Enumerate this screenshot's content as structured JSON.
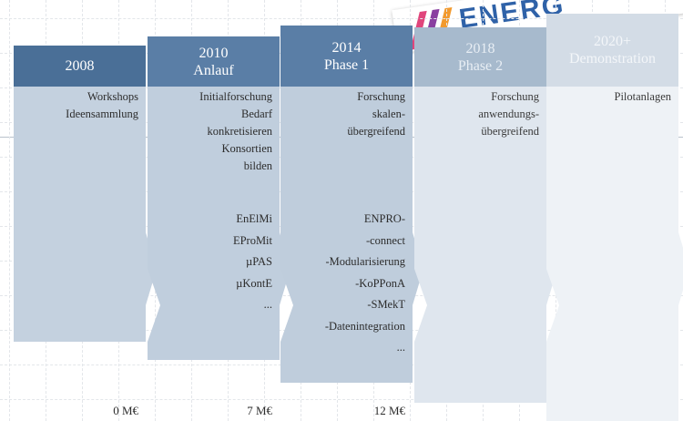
{
  "logo": "ENERG",
  "columns": [
    {
      "header": [
        "2008"
      ],
      "lines": [
        "Workshops",
        "Ideensammlung"
      ],
      "projects": [],
      "funding": "0 M€"
    },
    {
      "header": [
        "2010",
        "Anlauf"
      ],
      "lines": [
        "Initialforschung",
        "Bedarf",
        "konkretisieren",
        "Konsortien",
        "bilden"
      ],
      "projects": [
        "EnElMi",
        "EProMit",
        "µPAS",
        "µKontE",
        "..."
      ],
      "funding": "7 M€"
    },
    {
      "header": [
        "2014",
        "Phase 1"
      ],
      "lines": [
        "Forschung",
        "skalen-",
        "übergreifend"
      ],
      "projects": [
        "ENPRO-",
        "-connect",
        "-Modularisierung",
        "-KoPPonA",
        "-SMekT",
        "-Datenintegration",
        "..."
      ],
      "funding": "12 M€"
    },
    {
      "header": [
        "2018",
        "Phase 2"
      ],
      "lines": [
        "Forschung",
        "anwendungs-",
        "übergreifend"
      ],
      "projects": [],
      "funding": null
    },
    {
      "header": [
        "2020+",
        "Demonstration"
      ],
      "lines": [
        "Pilotanlagen"
      ],
      "projects": [],
      "funding": null
    }
  ]
}
